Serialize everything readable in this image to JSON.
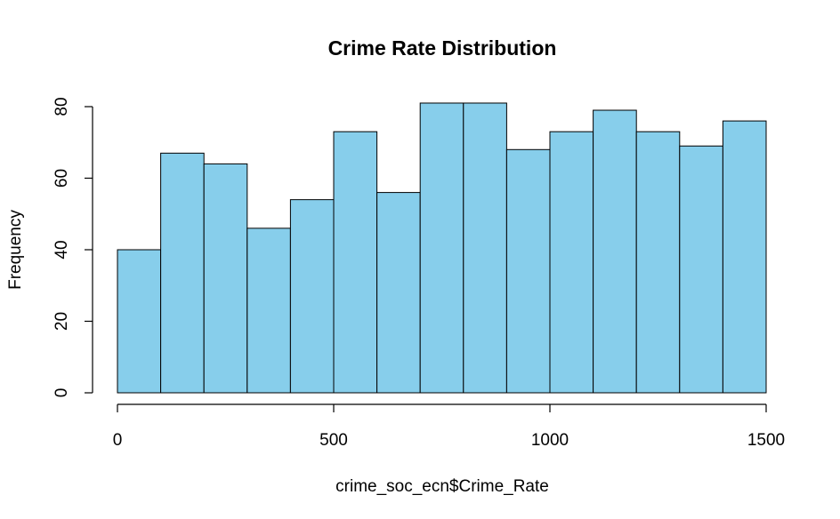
{
  "chart_data": {
    "type": "bar",
    "title": "Crime Rate Distribution",
    "xlabel": "crime_soc_ecn$Crime_Rate",
    "ylabel": "Frequency",
    "bin_edges": [
      0,
      100,
      200,
      300,
      400,
      500,
      600,
      700,
      800,
      900,
      1000,
      1100,
      1200,
      1300,
      1400,
      1500
    ],
    "values": [
      40,
      67,
      64,
      46,
      54,
      73,
      56,
      81,
      81,
      68,
      73,
      79,
      73,
      69,
      76
    ],
    "xlim": [
      0,
      1500
    ],
    "ylim": [
      0,
      80
    ],
    "x_ticks": [
      0,
      500,
      1000,
      1500
    ],
    "y_ticks": [
      0,
      20,
      40,
      60,
      80
    ],
    "bar_color": "#87CEEB",
    "grid": false
  }
}
